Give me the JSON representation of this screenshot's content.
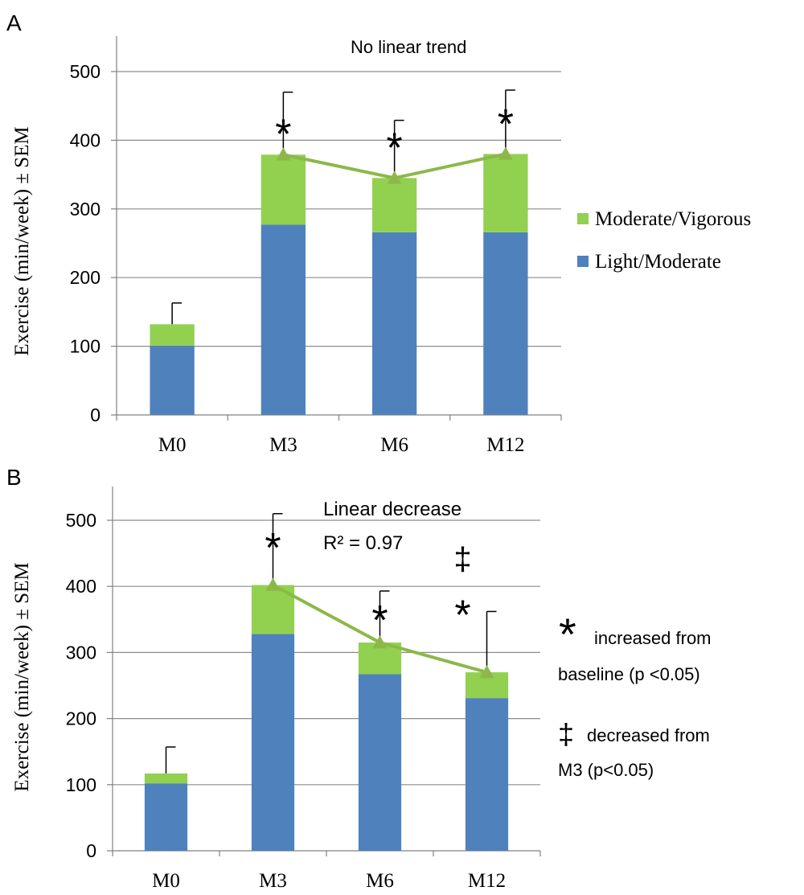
{
  "colors": {
    "light_moderate": "#4f81bd",
    "moderate_vigorous": "#92d050",
    "trend_line": "#8cb84a",
    "axis": "#808080",
    "grid": "#8c8c8c",
    "error_bar": "#000000"
  },
  "legend": {
    "items": [
      {
        "label": "Moderate/Vigorous",
        "color": "#92d050"
      },
      {
        "label": "Light/Moderate",
        "color": "#4f81bd"
      }
    ]
  },
  "notes": {
    "star_symbol": "*",
    "star_text_1": "increased from",
    "star_text_2": "baseline (p <0.05)",
    "dagger_symbol": "‡",
    "dagger_text_1": "decreased from",
    "dagger_text_2": "M3 (p<0.05)"
  },
  "chart_data": [
    {
      "panel": "A",
      "type": "bar",
      "stacked": true,
      "ylabel": "Exercise (min/week) ± SEM",
      "ylim": [
        0,
        550
      ],
      "yticks": [
        0,
        100,
        200,
        300,
        400,
        500
      ],
      "categories": [
        "M0",
        "M3",
        "M6",
        "M12"
      ],
      "annotation": [
        "No linear trend"
      ],
      "series": [
        {
          "name": "Light/Moderate",
          "values": [
            101,
            277,
            266,
            266
          ]
        },
        {
          "name": "Moderate/Vigorous",
          "values": [
            31,
            102,
            79,
            114
          ]
        }
      ],
      "totals": [
        132,
        379,
        345,
        380
      ],
      "error_top": [
        163,
        470,
        429,
        473
      ],
      "trend_points": [
        379,
        345,
        380
      ],
      "marks": [
        "",
        "*",
        "*",
        "*"
      ],
      "grid": true
    },
    {
      "panel": "B",
      "type": "bar",
      "stacked": true,
      "ylabel": "Exercise (min/week) ± SEM",
      "ylim": [
        0,
        550
      ],
      "yticks": [
        0,
        100,
        200,
        300,
        400,
        500
      ],
      "categories": [
        "M0",
        "M3",
        "M6",
        "M12"
      ],
      "annotation": [
        "Linear decrease",
        "R² = 0.97"
      ],
      "series": [
        {
          "name": "Light/Moderate",
          "values": [
            102,
            328,
            267,
            231
          ]
        },
        {
          "name": "Moderate/Vigorous",
          "values": [
            15,
            74,
            48,
            39
          ]
        }
      ],
      "totals": [
        117,
        402,
        315,
        270
      ],
      "error_top": [
        157,
        510,
        393,
        362
      ],
      "trend_points": [
        402,
        315,
        270
      ],
      "marks": [
        "",
        "*",
        "*",
        "‡ *"
      ],
      "grid": true
    }
  ]
}
